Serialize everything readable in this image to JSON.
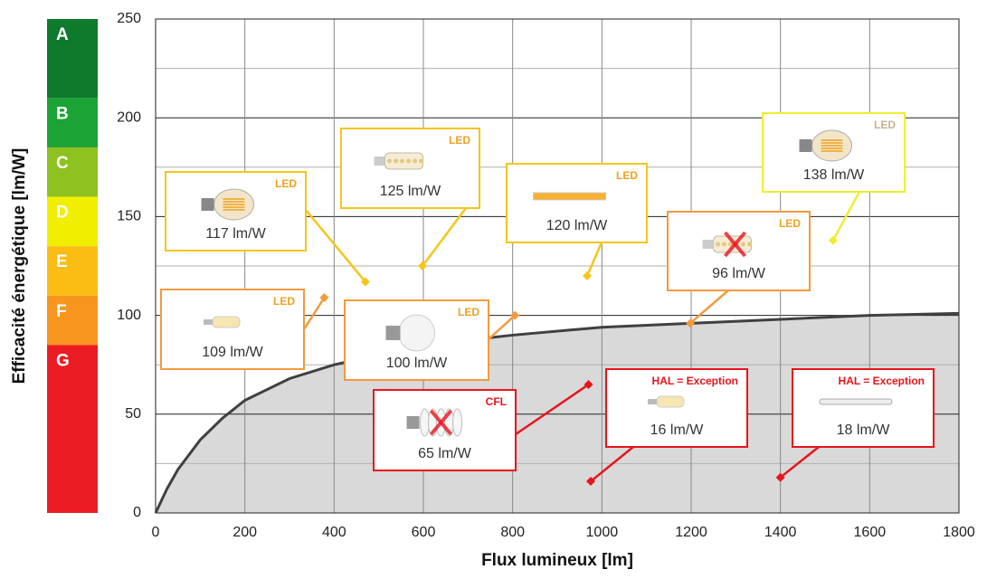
{
  "chart_data": {
    "type": "scatter",
    "x_label": "Flux lumineux [lm]",
    "y_label": "Efficacité énergétique [lm/W]",
    "xlim": [
      0,
      1800
    ],
    "ylim": [
      0,
      250
    ],
    "xticks": [
      0,
      200,
      400,
      600,
      800,
      1000,
      1200,
      1400,
      1600,
      1800
    ],
    "yticks": [
      0,
      50,
      100,
      150,
      200,
      250
    ],
    "y_minor_grid": [
      25,
      75,
      125,
      175,
      225
    ],
    "grid": true,
    "classes": [
      {
        "label": "A",
        "from": 210,
        "to": 250,
        "color": "#0e7a2c"
      },
      {
        "label": "B",
        "from": 185,
        "to": 210,
        "color": "#1ca335"
      },
      {
        "label": "C",
        "from": 160,
        "to": 185,
        "color": "#8dc220"
      },
      {
        "label": "D",
        "from": 135,
        "to": 160,
        "color": "#f2ee00"
      },
      {
        "label": "E",
        "from": 110,
        "to": 135,
        "color": "#fbbc14"
      },
      {
        "label": "F",
        "from": 85,
        "to": 110,
        "color": "#f7951e"
      },
      {
        "label": "G",
        "from": 0,
        "to": 85,
        "color": "#ec1c24"
      }
    ],
    "limit_curve": {
      "x": [
        0,
        25,
        50,
        100,
        150,
        200,
        300,
        400,
        500,
        600,
        800,
        1000,
        1200,
        1400,
        1600,
        1800
      ],
      "y": [
        0,
        12,
        22,
        37,
        48,
        57,
        68,
        75,
        80,
        85,
        90,
        94,
        96,
        98,
        100,
        101
      ],
      "color": "#404040",
      "fill": "#d9d9d9"
    },
    "products": [
      {
        "tag": "LED",
        "x": 470,
        "y": 117,
        "label": "117 lm/W",
        "color": "#f5c518",
        "crossed": false
      },
      {
        "tag": "LED",
        "x": 598,
        "y": 125,
        "label": "125 lm/W",
        "color": "#f5c518",
        "crossed": false
      },
      {
        "tag": "LED",
        "x": 967,
        "y": 120,
        "label": "120 lm/W",
        "color": "#f5c518",
        "crossed": false
      },
      {
        "tag": "LED",
        "x": 1518,
        "y": 138,
        "label": "138 lm/W",
        "color": "#eeee30",
        "crossed": false
      },
      {
        "tag": "LED",
        "x": 378,
        "y": 109,
        "label": "109 lm/W",
        "color": "#f39a3c",
        "crossed": false
      },
      {
        "tag": "LED",
        "x": 805,
        "y": 100,
        "label": "100 lm/W",
        "color": "#f39a3c",
        "crossed": false
      },
      {
        "tag": "LED",
        "x": 1198,
        "y": 96,
        "label": "96 lm/W",
        "color": "#f39a3c",
        "crossed": true
      },
      {
        "tag": "CFL",
        "x": 970,
        "y": 65,
        "label": "65 lm/W",
        "color": "#e8141c",
        "crossed": true
      },
      {
        "tag": "HAL = Exception",
        "x": 975,
        "y": 16,
        "label": "16 lm/W",
        "color": "#e8141c",
        "crossed": false
      },
      {
        "tag": "HAL = Exception",
        "x": 1400,
        "y": 18,
        "label": "18 lm/W",
        "color": "#e8141c",
        "crossed": false
      }
    ]
  }
}
